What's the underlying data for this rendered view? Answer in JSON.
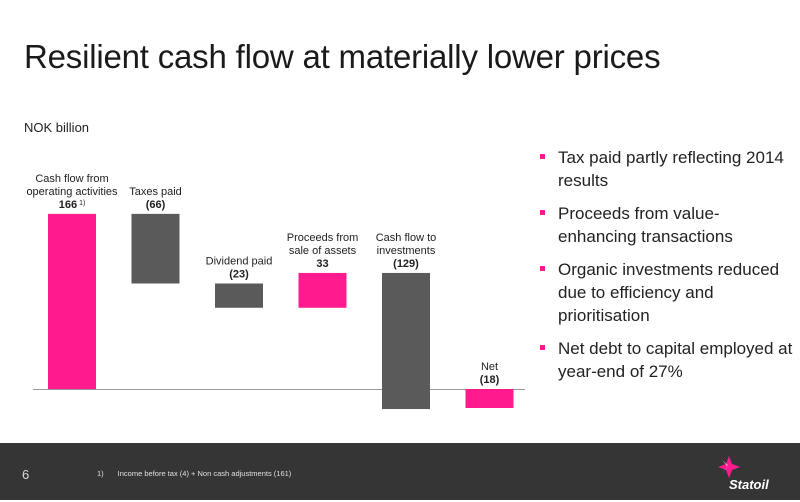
{
  "slide": {
    "title": "Resilient cash flow at materially lower prices",
    "unit_label": "NOK billion",
    "page_number": "6",
    "footnote_marker": "1)",
    "footnote_text": "Income before tax (4) + Non cash adjustments (161)",
    "logo_text": "Statoil"
  },
  "bullets": [
    "Tax paid partly reflecting 2014 results",
    "Proceeds from value-enhancing transactions",
    "Organic investments reduced due to efficiency and prioritisation",
    "Net debt to capital employed at year-end of 27%"
  ],
  "colors": {
    "positive": "#ff1b8d",
    "negative": "#5a5a5a",
    "footer": "#353535",
    "bullet": "#ff1b8d"
  },
  "chart_data": {
    "type": "waterfall",
    "unit": "NOK billion",
    "categories": [
      "Cash flow from operating activities",
      "Taxes paid",
      "Dividend paid",
      "Proceeds from sale of assets",
      "Cash flow to investments",
      "Net"
    ],
    "values": [
      166,
      -66,
      -23,
      33,
      -129,
      -18
    ],
    "value_labels": [
      "166",
      "(66)",
      "(23)",
      "33",
      "(129)",
      "(18)"
    ],
    "label_lines": [
      [
        "Cash flow from",
        "operating activities"
      ],
      [
        "Taxes paid"
      ],
      [
        "Dividend paid"
      ],
      [
        "Proceeds from",
        "sale of assets"
      ],
      [
        "Cash flow to",
        "investments"
      ],
      [
        "Net"
      ]
    ],
    "footnote_refs": [
      "1)",
      "",
      "",
      "",
      "",
      ""
    ],
    "bar_colors": [
      "#ff1b8d",
      "#5a5a5a",
      "#5a5a5a",
      "#ff1b8d",
      "#5a5a5a",
      "#ff1b8d"
    ],
    "baseline": 0
  }
}
